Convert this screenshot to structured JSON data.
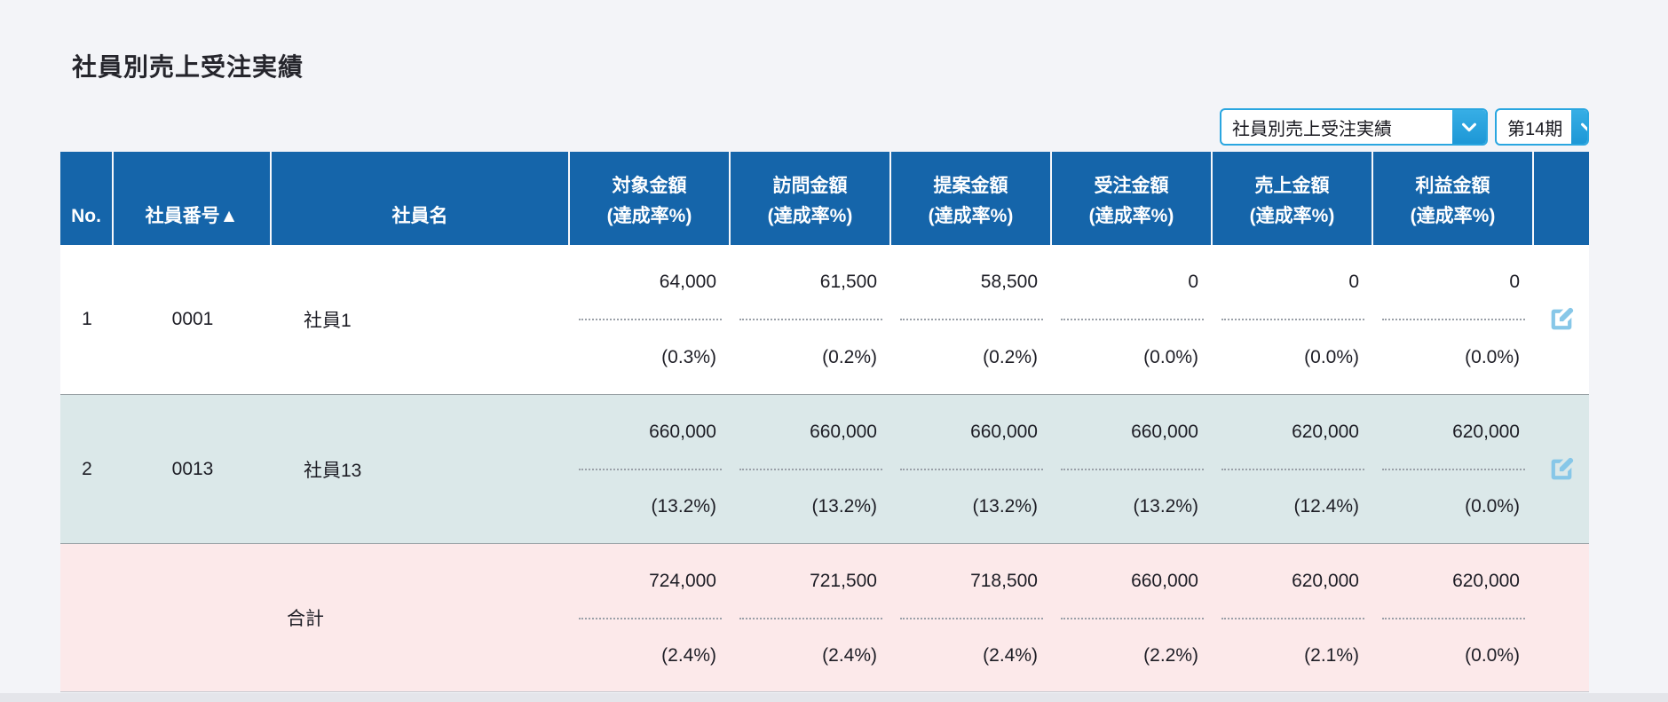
{
  "title": "社員別売上受注実績",
  "controls": {
    "report_select_value": "社員別売上受注実績",
    "period_select_value": "第14期"
  },
  "table": {
    "headers": {
      "no": "No.",
      "employee_number": "社員番号▲",
      "employee_name": "社員名"
    },
    "amount_headers": [
      {
        "key": "target-amount",
        "label": "対象金額",
        "sub": "(達成率%)"
      },
      {
        "key": "visit-amount",
        "label": "訪問金額",
        "sub": "(達成率%)"
      },
      {
        "key": "proposal-amount",
        "label": "提案金額",
        "sub": "(達成率%)"
      },
      {
        "key": "order-amount",
        "label": "受注金額",
        "sub": "(達成率%)"
      },
      {
        "key": "sales-amount",
        "label": "売上金額",
        "sub": "(達成率%)"
      },
      {
        "key": "profit-amount",
        "label": "利益金額",
        "sub": "(達成率%)"
      }
    ],
    "rows": [
      {
        "no": "1",
        "employee_number": "0001",
        "employee_name": "社員1",
        "amounts": [
          "64,000",
          "61,500",
          "58,500",
          "0",
          "0",
          "0"
        ],
        "rates": [
          "(0.3%)",
          "(0.2%)",
          "(0.2%)",
          "(0.0%)",
          "(0.0%)",
          "(0.0%)"
        ]
      },
      {
        "no": "2",
        "employee_number": "0013",
        "employee_name": "社員13",
        "amounts": [
          "660,000",
          "660,000",
          "660,000",
          "660,000",
          "620,000",
          "620,000"
        ],
        "rates": [
          "(13.2%)",
          "(13.2%)",
          "(13.2%)",
          "(13.2%)",
          "(12.4%)",
          "(0.0%)"
        ]
      }
    ],
    "total": {
      "label": "合計",
      "amounts": [
        "724,000",
        "721,500",
        "718,500",
        "660,000",
        "620,000",
        "620,000"
      ],
      "rates": [
        "(2.4%)",
        "(2.4%)",
        "(2.4%)",
        "(2.2%)",
        "(2.1%)",
        "(0.0%)"
      ]
    }
  },
  "icons": {
    "chevron": "chevron-down-icon",
    "edit": "edit-icon"
  },
  "colors": {
    "header_blue": "#1565aa",
    "row_alt_bg": "#dbe8e9",
    "total_row_bg": "#fce9ea",
    "accent_blue": "#2aa6e0",
    "edit_icon_blue": "#87c7e8",
    "page_bg": "#f3f4f8"
  }
}
